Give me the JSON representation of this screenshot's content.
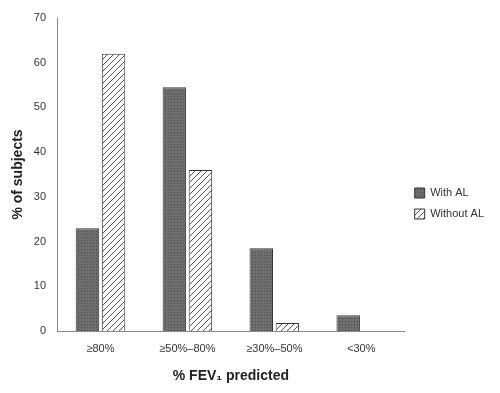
{
  "chart_data": {
    "type": "bar",
    "categories": [
      "≥80%",
      "≥50%–80%",
      "≥30%–50%",
      "<30%"
    ],
    "series": [
      {
        "name": "With AL",
        "color": "#6e6e6e",
        "values": [
          23,
          54.5,
          18.5,
          3.5
        ]
      },
      {
        "name": "Without AL",
        "color": "#ffffff",
        "values": [
          62,
          36,
          1.8,
          0
        ]
      }
    ],
    "x_label": "% FEV₁ predicted",
    "y_label": "% of subjects",
    "ylim": [
      0,
      70
    ],
    "yticks": [
      0,
      10,
      20,
      30,
      40,
      50,
      60,
      70
    ],
    "grid": false,
    "legend": "right"
  }
}
